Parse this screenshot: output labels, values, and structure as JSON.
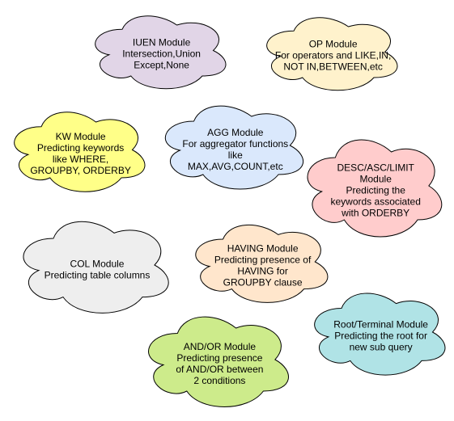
{
  "clouds": [
    {
      "id": "iuen",
      "fill": "#e1d5e7",
      "lines": [
        "IUEN Module",
        "Intersection,Union",
        "Except,None"
      ]
    },
    {
      "id": "op",
      "fill": "#fff2cc",
      "lines": [
        "OP Module",
        "For operators and LIKE,IN,",
        "NOT IN,BETWEEN,etc"
      ]
    },
    {
      "id": "kw",
      "fill": "#ffff88",
      "lines": [
        "KW Module",
        "Predicting keywords",
        "like WHERE,",
        "GROUPBY, ORDERBY"
      ]
    },
    {
      "id": "agg",
      "fill": "#dae8fc",
      "lines": [
        "AGG Module",
        "For aggregator functions",
        "like",
        "MAX,AVG,COUNT,etc"
      ]
    },
    {
      "id": "desc",
      "fill": "#ffcccc",
      "lines": [
        "DESC/ASC/LIMIT",
        "Module",
        "Predicting the",
        "keywords associated",
        "with ORDERBY"
      ]
    },
    {
      "id": "col",
      "fill": "#eeeeee",
      "lines": [
        "COL Module",
        "Predicting table columns"
      ]
    },
    {
      "id": "having",
      "fill": "#ffe6cc",
      "lines": [
        "HAVING Module",
        "Predicting presence of",
        "HAVING for",
        "GROUPBY clause"
      ]
    },
    {
      "id": "root",
      "fill": "#b0e3e6",
      "lines": [
        "Root/Terminal Module",
        "Predicting the root for",
        "new sub query"
      ]
    },
    {
      "id": "andor",
      "fill": "#cdeb8b",
      "lines": [
        "AND/OR Module",
        "Predicting presence",
        "of AND/OR between",
        "2 conditions"
      ]
    }
  ],
  "stroke": "#000000"
}
